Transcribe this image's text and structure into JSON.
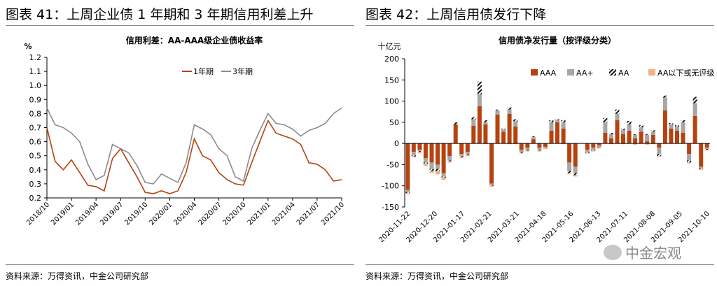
{
  "left_panel": {
    "figure_title": "图表 41：上周企业债 1 年期和 3 年期信用利差上升",
    "source": "资料来源：万得资讯，中金公司研究部"
  },
  "right_panel": {
    "figure_title": "图表 42：上周信用债发行下降",
    "source": "资料来源：万得资讯，中金公司研究部"
  },
  "watermark": {
    "text": "中金宏观",
    "icon": "wechat-icon"
  },
  "colors": {
    "series_1y": "#b5420f",
    "series_3y": "#8c8c8c",
    "AAA": "#b5420f",
    "AA_plus": "#a6a6a6",
    "AA": "#111111",
    "below_AA": "#f4b183"
  },
  "chart_data": [
    {
      "type": "line",
      "title": "信用利差：AA-AAA级企业债收益率",
      "ylabel": "%",
      "ylim": [
        0.2,
        1.2
      ],
      "yticks": [
        "0.2",
        "0.3",
        "0.4",
        "0.5",
        "0.6",
        "0.7",
        "0.8",
        "0.9",
        "1.0",
        "1.1",
        "1.2"
      ],
      "xlim": [
        "2018-10",
        "2021-10"
      ],
      "xticks": [
        "2018/10",
        "2019/01",
        "2019/04",
        "2019/07",
        "2019/10",
        "2020/01",
        "2020/04",
        "2020/07",
        "2020/10",
        "2021/01",
        "2021/04",
        "2021/07",
        "2021/10"
      ],
      "legend_position": "top-center",
      "series": [
        {
          "name": "1年期",
          "points": [
            [
              "2018-10",
              0.7
            ],
            [
              "2018-11",
              0.46
            ],
            [
              "2018-12",
              0.4
            ],
            [
              "2019-01",
              0.47
            ],
            [
              "2019-02",
              0.38
            ],
            [
              "2019-03",
              0.29
            ],
            [
              "2019-04",
              0.28
            ],
            [
              "2019-05",
              0.25
            ],
            [
              "2019-06",
              0.48
            ],
            [
              "2019-07",
              0.55
            ],
            [
              "2019-08",
              0.45
            ],
            [
              "2019-09",
              0.35
            ],
            [
              "2019-10",
              0.24
            ],
            [
              "2019-11",
              0.23
            ],
            [
              "2019-12",
              0.25
            ],
            [
              "2020-01",
              0.23
            ],
            [
              "2020-02",
              0.25
            ],
            [
              "2020-03",
              0.38
            ],
            [
              "2020-04",
              0.62
            ],
            [
              "2020-05",
              0.5
            ],
            [
              "2020-06",
              0.47
            ],
            [
              "2020-07",
              0.38
            ],
            [
              "2020-08",
              0.33
            ],
            [
              "2020-09",
              0.3
            ],
            [
              "2020-10",
              0.29
            ],
            [
              "2020-11",
              0.45
            ],
            [
              "2020-12",
              0.6
            ],
            [
              "2021-01",
              0.75
            ],
            [
              "2021-02",
              0.66
            ],
            [
              "2021-03",
              0.64
            ],
            [
              "2021-04",
              0.62
            ],
            [
              "2021-05",
              0.58
            ],
            [
              "2021-06",
              0.45
            ],
            [
              "2021-07",
              0.44
            ],
            [
              "2021-08",
              0.4
            ],
            [
              "2021-09",
              0.32
            ],
            [
              "2021-10",
              0.33
            ]
          ]
        },
        {
          "name": "3年期",
          "points": [
            [
              "2018-10",
              0.84
            ],
            [
              "2018-11",
              0.72
            ],
            [
              "2018-12",
              0.7
            ],
            [
              "2019-01",
              0.66
            ],
            [
              "2019-02",
              0.6
            ],
            [
              "2019-03",
              0.44
            ],
            [
              "2019-04",
              0.33
            ],
            [
              "2019-05",
              0.36
            ],
            [
              "2019-06",
              0.58
            ],
            [
              "2019-07",
              0.55
            ],
            [
              "2019-08",
              0.52
            ],
            [
              "2019-09",
              0.43
            ],
            [
              "2019-10",
              0.31
            ],
            [
              "2019-11",
              0.3
            ],
            [
              "2019-12",
              0.37
            ],
            [
              "2020-01",
              0.34
            ],
            [
              "2020-02",
              0.31
            ],
            [
              "2020-03",
              0.45
            ],
            [
              "2020-04",
              0.72
            ],
            [
              "2020-05",
              0.69
            ],
            [
              "2020-06",
              0.65
            ],
            [
              "2020-07",
              0.55
            ],
            [
              "2020-08",
              0.5
            ],
            [
              "2020-09",
              0.35
            ],
            [
              "2020-10",
              0.32
            ],
            [
              "2020-11",
              0.55
            ],
            [
              "2020-12",
              0.68
            ],
            [
              "2021-01",
              0.8
            ],
            [
              "2021-02",
              0.73
            ],
            [
              "2021-03",
              0.72
            ],
            [
              "2021-04",
              0.69
            ],
            [
              "2021-05",
              0.64
            ],
            [
              "2021-06",
              0.68
            ],
            [
              "2021-07",
              0.7
            ],
            [
              "2021-08",
              0.73
            ],
            [
              "2021-09",
              0.8
            ],
            [
              "2021-10",
              0.84
            ]
          ]
        }
      ]
    },
    {
      "type": "bar",
      "stacked": true,
      "title": "信用债净发行量（按评级分类）",
      "ylabel": "十亿元",
      "ylim": [
        -150,
        200
      ],
      "yticks": [
        -150,
        -100,
        -50,
        0,
        50,
        100,
        150,
        200
      ],
      "xticks": [
        "2020-11-22",
        "2020-12-20",
        "2021-01-17",
        "2021-02-21",
        "2021-03-21",
        "2021-04-18",
        "2021-05-16",
        "2021-06-13",
        "2021-07-11",
        "2021-08-08",
        "2021-09-05",
        "2021-10-10"
      ],
      "legend_position": "top-right",
      "series": [
        {
          "name": "AAA",
          "values": [
            -110,
            -20,
            -15,
            -35,
            -45,
            -50,
            -70,
            -30,
            45,
            -25,
            -20,
            42,
            88,
            45,
            -95,
            68,
            28,
            70,
            40,
            -15,
            -10,
            10,
            -10,
            -8,
            30,
            50,
            35,
            -45,
            -55,
            0,
            -15,
            -10,
            -5,
            25,
            12,
            55,
            22,
            30,
            12,
            28,
            5,
            20,
            -10,
            78,
            35,
            30,
            25,
            -25,
            65,
            -55,
            -10
          ]
        },
        {
          "name": "AA+",
          "values": [
            -5,
            -8,
            -3,
            -10,
            -15,
            -10,
            -8,
            -10,
            0,
            -5,
            -5,
            15,
            28,
            5,
            -3,
            10,
            5,
            10,
            12,
            -5,
            -5,
            5,
            -5,
            -2,
            20,
            5,
            15,
            -20,
            -15,
            0,
            -5,
            -5,
            -3,
            25,
            10,
            15,
            10,
            15,
            8,
            10,
            15,
            8,
            -15,
            30,
            10,
            10,
            25,
            -15,
            30,
            -3,
            -3
          ]
        },
        {
          "name": "AA",
          "values": [
            -2,
            -3,
            -2,
            -3,
            -5,
            -5,
            -3,
            -2,
            5,
            -2,
            -2,
            5,
            30,
            5,
            -2,
            2,
            2,
            5,
            5,
            -2,
            -2,
            2,
            -2,
            -1,
            5,
            2,
            5,
            -5,
            -5,
            0,
            -2,
            -2,
            -1,
            10,
            3,
            10,
            3,
            8,
            2,
            5,
            2,
            3,
            -5,
            5,
            3,
            3,
            5,
            -5,
            15,
            -2,
            -2
          ]
        },
        {
          "name": "AA以下或无评级",
          "values": [
            -3,
            -2,
            -3,
            -5,
            -5,
            -8,
            -5,
            -3,
            0,
            -3,
            -3,
            0,
            0,
            -2,
            -2,
            0,
            0,
            -2,
            -2,
            -2,
            -2,
            0,
            -2,
            -2,
            0,
            0,
            -2,
            -2,
            -3,
            0,
            -2,
            -2,
            -3,
            0,
            -2,
            0,
            -2,
            0,
            -3,
            0,
            -3,
            -2,
            -2,
            0,
            0,
            0,
            0,
            -2,
            0,
            -3,
            -2
          ]
        }
      ]
    }
  ]
}
